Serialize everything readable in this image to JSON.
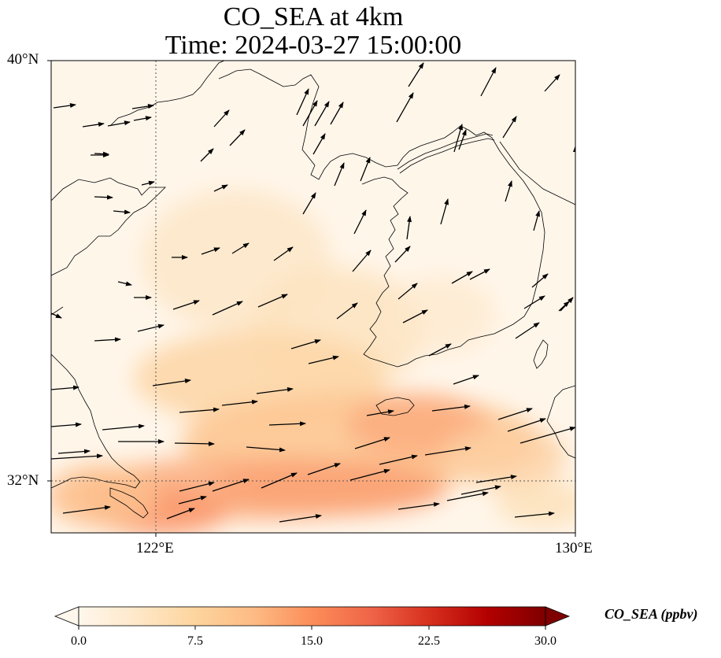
{
  "title": {
    "line1": "CO_SEA at 4km",
    "line2": "Time: 2024-03-27 15:00:00"
  },
  "axes": {
    "lat_labels": [
      "40°N",
      "32°N"
    ],
    "lon_labels": [
      "122°E",
      "130°E"
    ],
    "lon_range": [
      120,
      130
    ],
    "lat_range": [
      31,
      40
    ],
    "gridlines": "dotted at 122°E and 32°N"
  },
  "colorbar": {
    "label": "CO_SEA (ppbv)",
    "ticks": [
      "0.0",
      "7.5",
      "15.0",
      "22.5",
      "30.0"
    ],
    "range": [
      0,
      30
    ],
    "colormap": "OrRd",
    "colors": [
      "#fff7ec",
      "#fee8c8",
      "#fdd49e",
      "#fdbb84",
      "#fc8d59",
      "#ef6548",
      "#d7301f",
      "#b30000",
      "#7f0000"
    ],
    "extend": "both"
  },
  "coastline_color": "#000000",
  "wind_vectors": "black arrows, predominantly westerly / south-westerly"
}
